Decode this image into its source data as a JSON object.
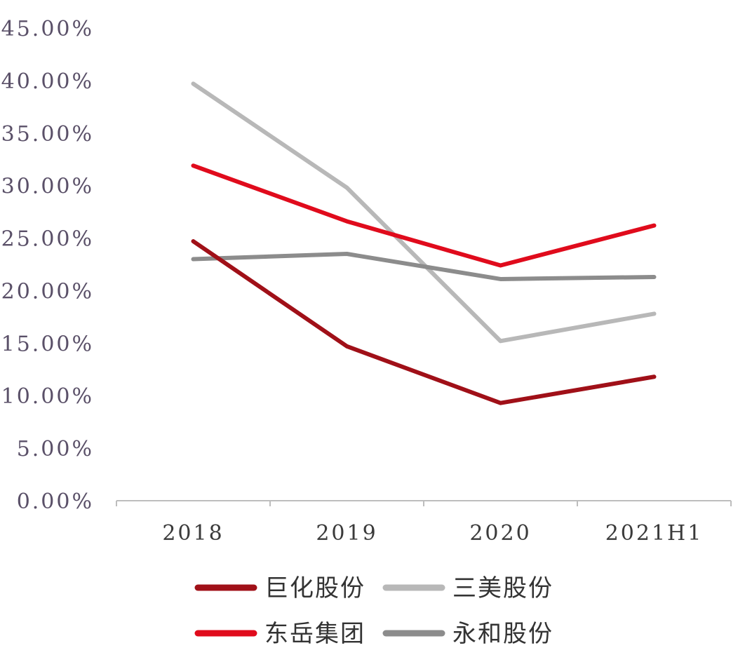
{
  "chart_data": {
    "type": "line",
    "categories": [
      "2018",
      "2019",
      "2020",
      "2021H1"
    ],
    "y_ticks": [
      "0.00%",
      "5.00%",
      "10.00%",
      "15.00%",
      "20.00%",
      "25.00%",
      "30.00%",
      "35.00%",
      "40.00%",
      "45.00%"
    ],
    "ylim": [
      0,
      45
    ],
    "grid": false,
    "legend_position": "bottom",
    "series": [
      {
        "name": "巨化股份",
        "values": [
          24.7,
          14.7,
          9.3,
          11.8
        ],
        "color": "#a01018"
      },
      {
        "name": "三美股份",
        "values": [
          39.7,
          29.8,
          15.2,
          17.8
        ],
        "color": "#b8b8b8"
      },
      {
        "name": "东岳集团",
        "values": [
          31.9,
          26.6,
          22.4,
          26.2
        ],
        "color": "#e00b1c"
      },
      {
        "name": "永和股份",
        "values": [
          23.0,
          23.5,
          21.1,
          21.3
        ],
        "color": "#8c8c8c"
      }
    ]
  }
}
